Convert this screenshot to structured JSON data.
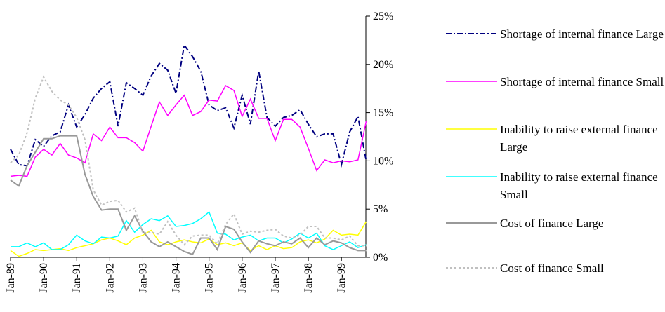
{
  "chart_data": {
    "type": "line",
    "categories": [
      "Jan-89",
      null,
      null,
      null,
      "Jan-90",
      null,
      null,
      null,
      "Jan-91",
      null,
      null,
      null,
      "Jan-92",
      null,
      null,
      null,
      "Jan-93",
      null,
      null,
      null,
      "Jan-94",
      null,
      null,
      null,
      "Jan-95",
      null,
      null,
      null,
      "Jan-96",
      null,
      null,
      null,
      "Jan-97",
      null,
      null,
      null,
      "Jan-98",
      null,
      null,
      null,
      "Jan-99",
      null,
      null,
      null
    ],
    "ylim": [
      0,
      25
    ],
    "yticks": [
      {
        "value": 0,
        "label": "0%"
      },
      {
        "value": 5,
        "label": "5%"
      },
      {
        "value": 10,
        "label": "10%"
      },
      {
        "value": 15,
        "label": "15%"
      },
      {
        "value": 20,
        "label": "20%"
      },
      {
        "value": 25,
        "label": "25%"
      }
    ],
    "series": [
      {
        "name": "Shortage of internal finance Large",
        "color": "#000080",
        "style": "dashdot",
        "values": [
          11.2,
          9.6,
          9.5,
          12.2,
          11.5,
          12.6,
          13.0,
          15.8,
          13.5,
          14.8,
          16.5,
          17.5,
          18.2,
          13.6,
          18.1,
          17.5,
          16.8,
          18.8,
          20.1,
          19.4,
          17.0,
          22.0,
          20.8,
          19.3,
          15.8,
          15.2,
          15.5,
          13.4,
          16.8,
          13.8,
          19.3,
          14.5,
          13.6,
          14.5,
          14.7,
          15.3,
          13.8,
          12.5,
          12.8,
          12.8,
          9.6,
          13.0,
          14.6,
          10.0
        ]
      },
      {
        "name": "Shortage of internal finance Small",
        "color": "#ff00ff",
        "style": "solid",
        "values": [
          8.4,
          8.5,
          8.4,
          10.4,
          11.2,
          10.6,
          11.8,
          10.6,
          10.3,
          9.8,
          12.8,
          12.1,
          13.5,
          12.4,
          12.4,
          11.9,
          11.0,
          13.6,
          16.1,
          14.7,
          15.8,
          16.8,
          14.7,
          15.1,
          16.3,
          16.2,
          17.8,
          17.3,
          14.6,
          16.4,
          14.4,
          14.4,
          12.1,
          14.3,
          14.3,
          13.5,
          11.3,
          9.0,
          10.1,
          9.8,
          10.0,
          9.9,
          10.1,
          14.1
        ]
      },
      {
        "name": "Inability to raise external finance Large",
        "color": "#ffff00",
        "style": "solid",
        "values": [
          0.7,
          0.1,
          0.4,
          0.8,
          0.7,
          0.8,
          0.9,
          0.7,
          1.0,
          1.2,
          1.4,
          1.8,
          2.0,
          1.7,
          1.3,
          2.0,
          2.3,
          2.8,
          1.6,
          1.3,
          1.6,
          1.8,
          1.6,
          1.5,
          1.9,
          1.3,
          1.5,
          1.2,
          1.5,
          0.7,
          1.2,
          0.8,
          1.2,
          0.9,
          1.0,
          1.6,
          1.8,
          1.5,
          1.9,
          2.8,
          2.3,
          2.4,
          2.3,
          3.7
        ]
      },
      {
        "name": "Inability to raise external finance Small",
        "color": "#00ffff",
        "style": "solid",
        "values": [
          1.1,
          1.1,
          1.5,
          1.1,
          1.5,
          0.8,
          0.8,
          1.3,
          2.3,
          1.7,
          1.4,
          2.1,
          2.0,
          2.2,
          3.8,
          2.6,
          3.4,
          4.0,
          3.8,
          4.3,
          3.2,
          3.3,
          3.5,
          4.0,
          4.7,
          2.5,
          2.4,
          1.8,
          2.1,
          2.3,
          1.7,
          2.0,
          2.0,
          1.5,
          1.9,
          2.5,
          2.0,
          2.5,
          1.2,
          0.8,
          1.2,
          1.6,
          1.0,
          1.3
        ]
      },
      {
        "name": "Cost of finance Large",
        "color": "#999999",
        "style": "thick",
        "values": [
          8.0,
          7.4,
          9.5,
          10.9,
          12.3,
          12.3,
          12.6,
          12.6,
          12.6,
          8.6,
          6.3,
          4.9,
          5.0,
          5.0,
          2.8,
          4.3,
          2.7,
          1.6,
          1.1,
          1.6,
          1.1,
          0.6,
          0.3,
          2.0,
          2.0,
          0.8,
          3.2,
          2.9,
          1.6,
          0.5,
          1.7,
          1.4,
          1.2,
          1.6,
          1.4,
          2.0,
          1.0,
          2.0,
          1.3,
          1.7,
          1.5,
          1.0,
          0.7,
          0.7
        ]
      },
      {
        "name": "Cost of finance Small",
        "color": "#c0c0c0",
        "style": "dotted",
        "values": [
          9.8,
          10.6,
          12.9,
          16.5,
          18.7,
          17.2,
          16.3,
          15.8,
          14.5,
          12.2,
          7.0,
          5.4,
          5.8,
          5.9,
          4.7,
          5.1,
          2.5,
          2.6,
          2.4,
          3.7,
          2.3,
          1.3,
          2.2,
          2.3,
          2.3,
          1.4,
          3.4,
          4.5,
          2.4,
          2.7,
          2.6,
          2.8,
          2.9,
          2.2,
          2.0,
          2.3,
          3.2,
          3.2,
          2.0,
          2.0,
          1.8,
          2.2,
          1.2,
          1.2
        ]
      }
    ]
  }
}
